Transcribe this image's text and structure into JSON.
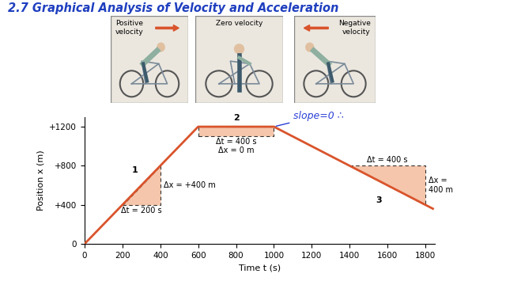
{
  "title": "2.7 Graphical Analysis of Velocity and Acceleration",
  "panels": [
    {
      "label": "Positive\nvelocity",
      "arrow": "right"
    },
    {
      "label": "Zero velocity",
      "arrow": null
    },
    {
      "label": "Negative\nvelocity",
      "arrow": "left"
    }
  ],
  "chart_data": {
    "type": "line",
    "x_label": "Time t (s)",
    "y_label": "Position x (m)",
    "x": [
      0,
      600,
      1000,
      1840
    ],
    "values": [
      0,
      1200,
      1200,
      360
    ],
    "color": "#d9542c",
    "xlim": [
      0,
      1850
    ],
    "xticks": [
      0,
      200,
      400,
      600,
      800,
      1000,
      1200,
      1400,
      1600,
      1800
    ],
    "ylim": [
      0,
      1300
    ],
    "yticks": [
      0,
      {
        "value": 400,
        "label": "+400"
      },
      {
        "value": 800,
        "label": "+800"
      },
      {
        "value": 1200,
        "label": "+1200"
      }
    ],
    "grid": false,
    "region_color": "#f5c6ab",
    "regions": [
      {
        "label": "1",
        "polygon": [
          [
            200,
            400
          ],
          [
            400,
            400
          ],
          [
            400,
            800
          ]
        ],
        "dt_label": "Δt = 200 s",
        "dx_label": "Δx = +400 m"
      },
      {
        "label": "2",
        "polygon": [
          [
            600,
            1100
          ],
          [
            1000,
            1100
          ],
          [
            1000,
            1200
          ],
          [
            600,
            1200
          ]
        ],
        "dt_label": "Δt = 400 s",
        "dx_label": "Δx = 0 m"
      },
      {
        "label": "3",
        "polygon": [
          [
            1400,
            800
          ],
          [
            1800,
            800
          ],
          [
            1800,
            400
          ]
        ],
        "dt_label": "Δt = 400 s",
        "dx_label": "Δx =\n400 m"
      }
    ],
    "note": {
      "text": "slope=0 ∴",
      "color": "#2a3fd6"
    }
  }
}
